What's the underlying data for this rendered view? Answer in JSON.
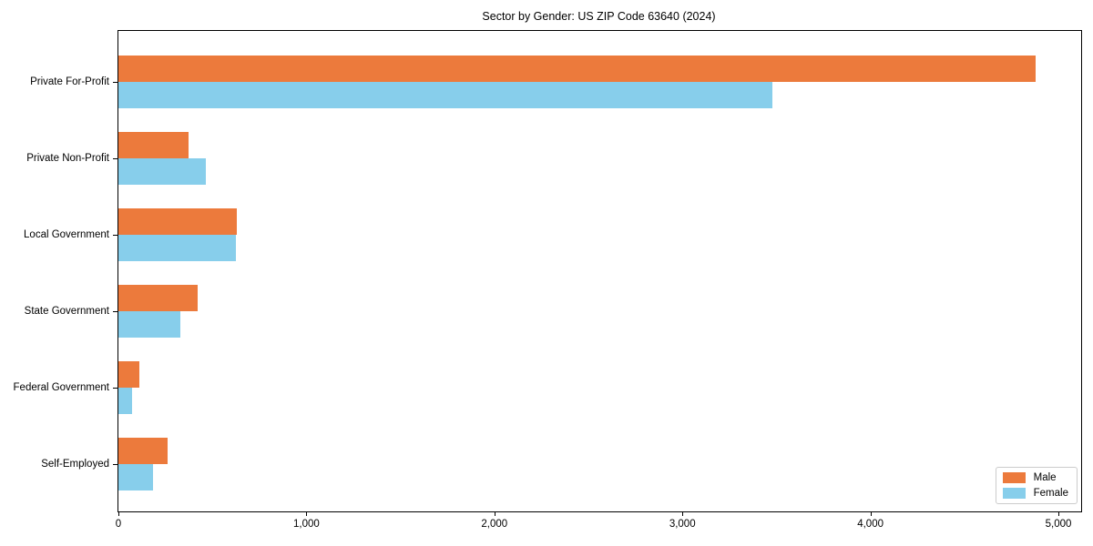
{
  "title": "Sector by Gender: US ZIP Code 63640 (2024)",
  "colors": {
    "male": "#EC7A3C",
    "female": "#87CEEB",
    "spine": "#000000",
    "legend_border": "#cccccc",
    "background": "#ffffff"
  },
  "legend": {
    "position": "lower right",
    "items": [
      {
        "label": "Male",
        "color": "#EC7A3C"
      },
      {
        "label": "Female",
        "color": "#87CEEB"
      }
    ]
  },
  "chart_data": {
    "type": "bar",
    "orientation": "horizontal",
    "title": "Sector by Gender: US ZIP Code 63640 (2024)",
    "categories": [
      "Private For-Profit",
      "Private Non-Profit",
      "Local Government",
      "State Government",
      "Federal Government",
      "Self-Employed"
    ],
    "series": [
      {
        "name": "Male",
        "color": "#EC7A3C",
        "values": [
          4877,
          375,
          630,
          423,
          110,
          263
        ]
      },
      {
        "name": "Female",
        "color": "#87CEEB",
        "values": [
          3477,
          465,
          626,
          328,
          73,
          183
        ]
      }
    ],
    "xlabel": "",
    "ylabel": "",
    "xlim": [
      0,
      5121
    ],
    "xticks": [
      0,
      1000,
      2000,
      3000,
      4000,
      5000
    ],
    "xtick_labels": [
      "0",
      "1,000",
      "2,000",
      "3,000",
      "4,000",
      "5,000"
    ],
    "grid": false,
    "legend_position": "lower right"
  }
}
